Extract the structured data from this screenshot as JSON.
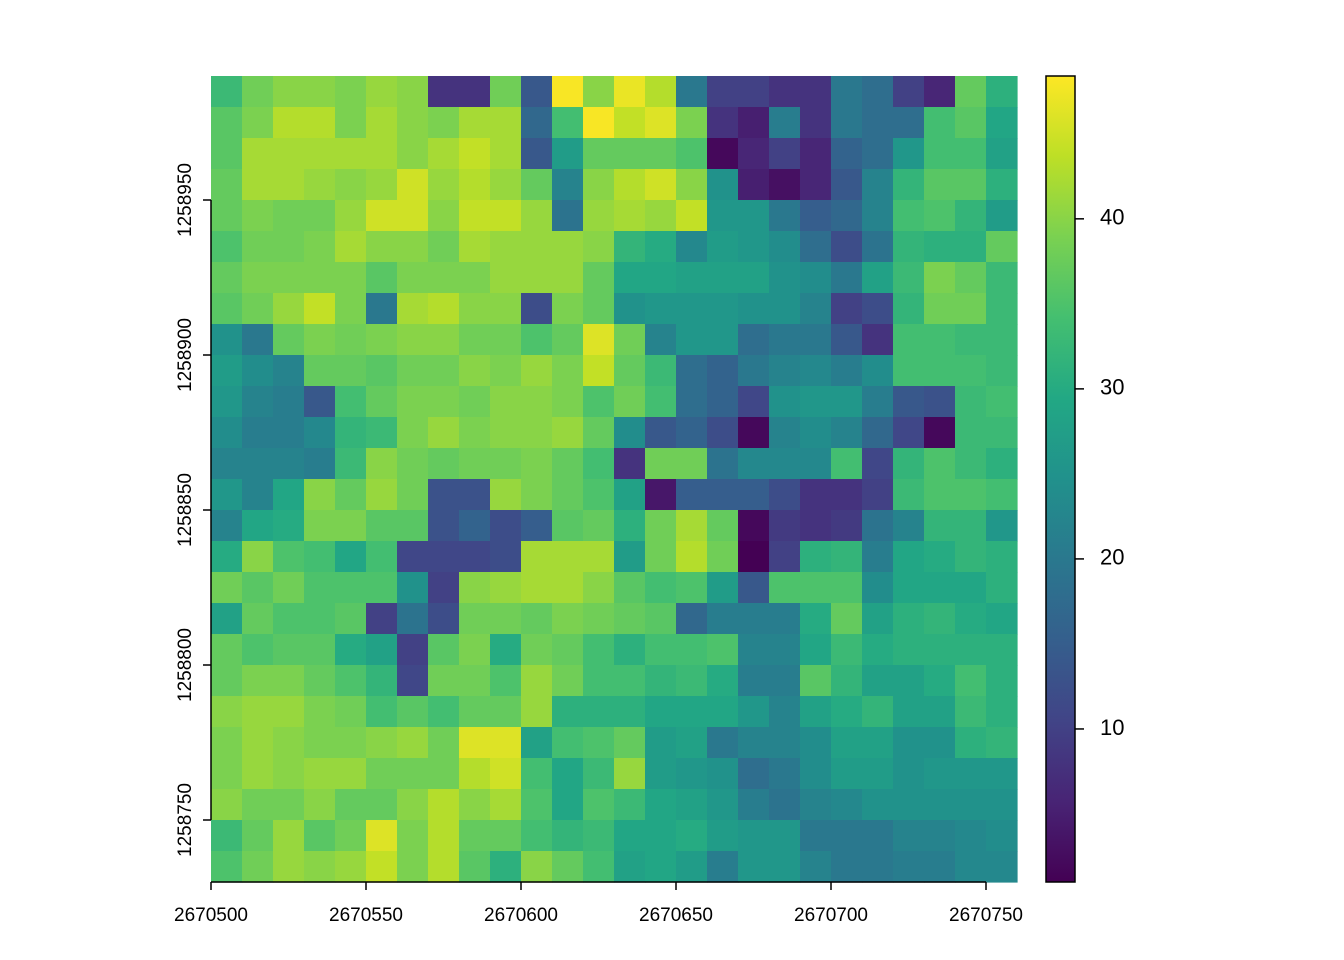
{
  "chart_data": {
    "type": "heatmap",
    "colormap": "viridis",
    "xlim": [
      2670500,
      2670760
    ],
    "ylim": [
      1258730,
      1258990
    ],
    "zlim": [
      1,
      48.4
    ],
    "xticks": [
      2670500,
      2670550,
      2670600,
      2670650,
      2670700,
      2670750
    ],
    "yticks": [
      1258750,
      1258800,
      1258850,
      1258900,
      1258950
    ],
    "zticks": [
      10,
      20,
      30,
      40
    ],
    "values": [
      [
        33,
        38,
        40,
        40,
        39,
        41,
        40,
        8,
        8,
        38,
        14,
        48,
        40,
        47,
        43,
        20,
        10,
        10,
        8,
        8,
        20,
        18,
        10,
        6,
        37,
        31
      ],
      [
        36,
        39,
        43,
        43,
        39,
        42,
        40,
        39,
        42,
        42,
        17,
        34,
        48,
        44,
        46,
        39,
        8,
        5,
        21,
        8,
        20,
        18,
        18,
        34,
        36,
        29
      ],
      [
        36,
        42,
        42,
        42,
        42,
        42,
        40,
        42,
        44,
        42,
        14,
        27,
        37,
        37,
        37,
        35,
        2,
        6,
        10,
        6,
        16,
        18,
        26,
        34,
        34,
        28
      ],
      [
        37,
        42,
        42,
        41,
        40,
        41,
        45,
        41,
        43,
        41,
        37,
        22,
        40,
        43,
        45,
        40,
        25,
        5,
        3,
        6,
        14,
        22,
        32,
        36,
        36,
        31
      ],
      [
        37,
        39,
        38,
        38,
        41,
        45,
        45,
        40,
        44,
        44,
        41,
        19,
        41,
        42,
        41,
        44,
        26,
        26,
        20,
        15,
        17,
        22,
        34,
        35,
        32,
        27
      ],
      [
        35,
        38,
        38,
        39,
        42,
        40,
        40,
        38,
        42,
        41,
        41,
        41,
        40,
        32,
        30,
        23,
        27,
        26,
        24,
        18,
        12,
        19,
        32,
        31,
        31,
        37
      ],
      [
        37,
        39,
        39,
        39,
        39,
        36,
        39,
        39,
        39,
        41,
        41,
        41,
        37,
        29,
        29,
        28,
        28,
        28,
        25,
        24,
        20,
        28,
        33,
        39,
        37,
        33
      ],
      [
        36,
        38,
        41,
        44,
        39,
        20,
        42,
        43,
        40,
        40,
        12,
        39,
        37,
        25,
        26,
        26,
        26,
        25,
        25,
        22,
        10,
        12,
        32,
        38,
        38,
        33
      ],
      [
        25,
        20,
        37,
        39,
        38,
        39,
        40,
        40,
        38,
        38,
        35,
        37,
        46,
        38,
        22,
        26,
        26,
        18,
        20,
        20,
        14,
        8,
        34,
        34,
        33,
        33
      ],
      [
        27,
        24,
        22,
        37,
        37,
        36,
        38,
        38,
        40,
        39,
        41,
        39,
        44,
        37,
        33,
        18,
        16,
        20,
        22,
        23,
        21,
        24,
        34,
        34,
        34,
        33
      ],
      [
        26,
        22,
        21,
        14,
        34,
        37,
        39,
        39,
        38,
        40,
        40,
        39,
        35,
        38,
        34,
        18,
        16,
        11,
        25,
        26,
        26,
        21,
        14,
        13,
        33,
        34
      ],
      [
        24,
        21,
        21,
        23,
        32,
        33,
        39,
        41,
        39,
        40,
        40,
        41,
        37,
        24,
        14,
        16,
        12,
        2,
        22,
        24,
        22,
        17,
        11,
        2,
        33,
        33
      ],
      [
        22,
        22,
        22,
        21,
        33,
        40,
        38,
        37,
        38,
        38,
        39,
        37,
        34,
        8,
        38,
        38,
        19,
        23,
        23,
        23,
        34,
        11,
        32,
        35,
        33,
        31
      ],
      [
        26,
        22,
        29,
        40,
        37,
        41,
        38,
        13,
        13,
        41,
        39,
        37,
        35,
        28,
        4,
        15,
        15,
        15,
        12,
        8,
        8,
        10,
        33,
        35,
        35,
        34
      ],
      [
        22,
        29,
        30,
        39,
        39,
        36,
        36,
        13,
        16,
        12,
        15,
        36,
        37,
        31,
        38,
        42,
        37,
        2,
        9,
        8,
        9,
        19,
        22,
        32,
        32,
        26
      ],
      [
        30,
        40,
        35,
        34,
        29,
        34,
        11,
        11,
        11,
        12,
        42,
        42,
        42,
        27,
        38,
        43,
        38,
        1,
        10,
        31,
        32,
        21,
        29,
        30,
        32,
        31
      ],
      [
        38,
        36,
        38,
        35,
        35,
        35,
        25,
        10,
        40,
        41,
        42,
        42,
        40,
        36,
        34,
        35,
        27,
        14,
        35,
        35,
        35,
        24,
        29,
        29,
        29,
        31
      ],
      [
        28,
        37,
        35,
        35,
        36,
        10,
        19,
        12,
        38,
        38,
        37,
        39,
        38,
        37,
        36,
        17,
        21,
        21,
        21,
        30,
        37,
        28,
        31,
        32,
        30,
        29
      ],
      [
        37,
        35,
        36,
        36,
        30,
        28,
        10,
        36,
        39,
        30,
        38,
        37,
        34,
        31,
        34,
        34,
        35,
        22,
        22,
        29,
        33,
        30,
        31,
        31,
        31,
        31
      ],
      [
        37,
        39,
        39,
        37,
        35,
        32,
        11,
        38,
        38,
        35,
        41,
        38,
        34,
        34,
        32,
        33,
        30,
        21,
        21,
        36,
        32,
        28,
        28,
        30,
        34,
        31
      ],
      [
        40,
        41,
        41,
        39,
        38,
        34,
        36,
        34,
        37,
        37,
        41,
        31,
        31,
        31,
        29,
        29,
        29,
        26,
        22,
        28,
        30,
        32,
        28,
        28,
        33,
        31
      ],
      [
        39,
        41,
        40,
        39,
        39,
        40,
        41,
        38,
        46,
        46,
        28,
        34,
        35,
        37,
        27,
        28,
        20,
        22,
        22,
        24,
        28,
        28,
        25,
        25,
        31,
        32
      ],
      [
        39,
        41,
        40,
        41,
        41,
        38,
        38,
        38,
        43,
        45,
        34,
        29,
        33,
        41,
        27,
        26,
        25,
        18,
        20,
        24,
        27,
        27,
        25,
        26,
        26,
        26
      ],
      [
        40,
        38,
        38,
        40,
        37,
        37,
        40,
        43,
        40,
        42,
        35,
        29,
        35,
        33,
        29,
        28,
        26,
        21,
        19,
        22,
        23,
        25,
        25,
        25,
        25,
        25
      ],
      [
        33,
        37,
        41,
        36,
        38,
        46,
        39,
        43,
        37,
        37,
        34,
        32,
        33,
        29,
        29,
        30,
        27,
        26,
        26,
        20,
        20,
        20,
        22,
        22,
        23,
        24
      ],
      [
        35,
        38,
        41,
        40,
        41,
        44,
        39,
        43,
        36,
        31,
        40,
        37,
        34,
        28,
        29,
        27,
        21,
        26,
        26,
        22,
        20,
        20,
        21,
        21,
        23,
        23
      ]
    ]
  }
}
